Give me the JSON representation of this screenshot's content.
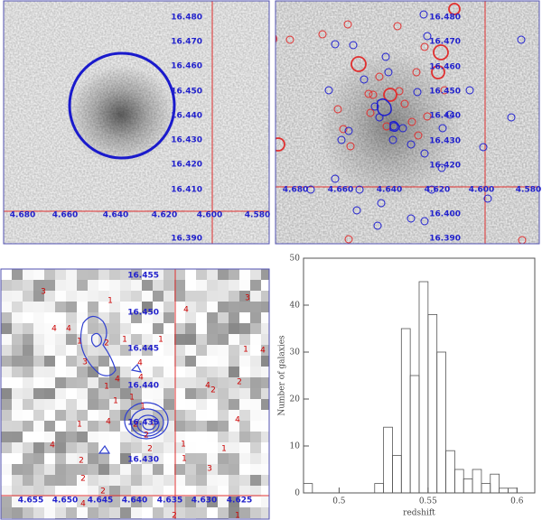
{
  "panels": [
    {
      "xticks": [
        "4.680",
        "4.660",
        "4.640",
        "4.620",
        "4.600",
        "4.580"
      ],
      "yticks": [
        "16.480",
        "16.470",
        "16.460",
        "16.450",
        "16.440",
        "16.430",
        "16.420",
        "16.410",
        "16.390"
      ]
    },
    {
      "xticks": [
        "4.680",
        "4.660",
        "4.640",
        "4.620",
        "4.600",
        "4.580"
      ],
      "yticks": [
        "16.480",
        "16.470",
        "16.460",
        "16.450",
        "16.440",
        "16.430",
        "16.420",
        "16.400",
        "16.390"
      ]
    },
    {
      "xticks": [
        "4.655",
        "4.650",
        "4.645",
        "4.640",
        "4.635",
        "4.630",
        "4.625"
      ],
      "yticks": [
        "16.455",
        "16.450",
        "16.445",
        "16.440",
        "16.435",
        "16.430"
      ],
      "labels": [
        "3",
        "1",
        "4",
        "3",
        "4",
        "4",
        "1",
        "2",
        "1",
        "1",
        "3",
        "4",
        "4",
        "4",
        "1",
        "1",
        "1",
        "4",
        "2",
        "2",
        "1",
        "4",
        "1",
        "4",
        "1",
        "4",
        "2",
        "1",
        "2",
        "2",
        "1",
        "1",
        "1",
        "2",
        "2",
        "3",
        "4",
        "2",
        "4",
        "2",
        "1"
      ]
    }
  ],
  "chart_data": {
    "type": "histogram",
    "xlabel": "redshift",
    "ylabel": "Number of galaxies",
    "bins": [
      0.48,
      0.485,
      0.49,
      0.495,
      0.5,
      0.505,
      0.51,
      0.515,
      0.52,
      0.525,
      0.53,
      0.535,
      0.54,
      0.545,
      0.55,
      0.555,
      0.56,
      0.565,
      0.57,
      0.575,
      0.58,
      0.585,
      0.59,
      0.595,
      0.6,
      0.605,
      0.61
    ],
    "counts": [
      2,
      0,
      0,
      0,
      0,
      0,
      0,
      0,
      2,
      14,
      8,
      35,
      25,
      45,
      38,
      30,
      9,
      5,
      3,
      5,
      2,
      4,
      1,
      1,
      0,
      0
    ],
    "color": "#555555",
    "xlim": [
      0.48,
      0.61
    ],
    "ylim": [
      0,
      50
    ],
    "xticks": [
      0.5,
      0.55,
      0.6
    ],
    "yticks": [
      0,
      10,
      20,
      30,
      40,
      50
    ]
  }
}
